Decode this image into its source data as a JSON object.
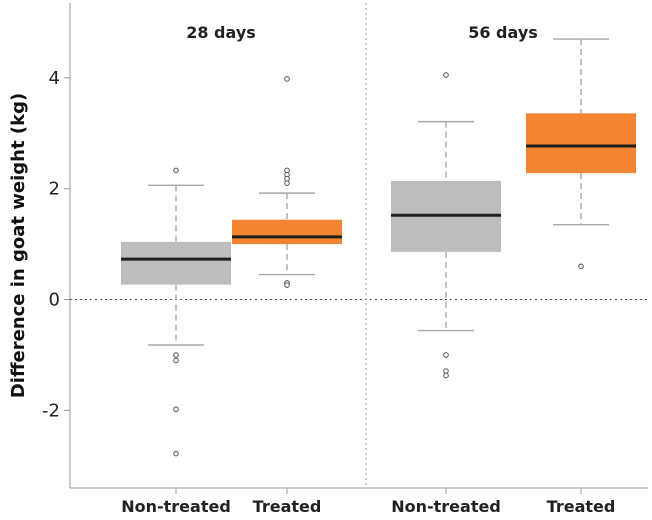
{
  "chart_data": {
    "type": "boxplot",
    "ylabel": "Difference in goat weight (kg)",
    "ylim": [
      -3.4,
      5.35
    ],
    "yticks": [
      {
        "value": 4,
        "label": "4"
      },
      {
        "value": 2,
        "label": "2"
      },
      {
        "value": 0,
        "label": "0"
      },
      {
        "value": -2,
        "label": "-2"
      }
    ],
    "reference_line": 0,
    "panels": [
      "28 days",
      "56 days"
    ],
    "categories": [
      "Non-treated",
      "Treated",
      "Non-treated",
      "Treated"
    ],
    "colors": {
      "non_treated": "#bdbdbd",
      "treated": "#f28432",
      "median": "#1f1f1f",
      "whisker": "#a8a8a8"
    },
    "series": [
      {
        "panel": "28 days",
        "group": "Non-treated",
        "q1": 0.27,
        "median": 0.73,
        "q3": 1.04,
        "whisker_low": -0.82,
        "whisker_high": 2.06,
        "outliers": [
          2.33,
          -1.0,
          -1.1,
          -1.98,
          -2.78
        ]
      },
      {
        "panel": "28 days",
        "group": "Treated",
        "q1": 1.0,
        "median": 1.13,
        "q3": 1.44,
        "whisker_low": 0.45,
        "whisker_high": 1.92,
        "outliers": [
          3.98,
          2.33,
          2.25,
          2.18,
          2.1,
          0.3,
          0.26
        ]
      },
      {
        "panel": "56 days",
        "group": "Non-treated",
        "q1": 0.86,
        "median": 1.52,
        "q3": 2.14,
        "whisker_low": -0.56,
        "whisker_high": 3.21,
        "outliers": [
          4.05,
          -1.0,
          -1.29,
          -1.37
        ]
      },
      {
        "panel": "56 days",
        "group": "Treated",
        "q1": 2.28,
        "median": 2.77,
        "q3": 3.36,
        "whisker_low": 1.35,
        "whisker_high": 4.7,
        "outliers": [
          0.6
        ]
      }
    ]
  }
}
